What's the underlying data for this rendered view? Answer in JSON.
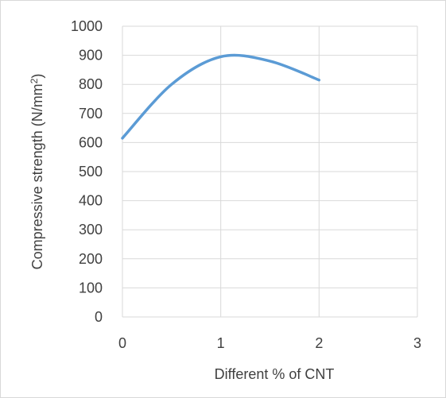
{
  "chart_data": {
    "type": "line",
    "smooth": true,
    "xlabel": "Different % of CNT",
    "ylabel": "Compressive strength (N/mm²)",
    "ylabel_base": "Compressive strength (N/mm",
    "ylabel_sup": "2",
    "ylabel_end": ")",
    "xlim": [
      0,
      3
    ],
    "ylim": [
      0,
      1000
    ],
    "xticks": [
      "0",
      "1",
      "2",
      "3"
    ],
    "yticks": [
      "0",
      "100",
      "200",
      "300",
      "400",
      "500",
      "600",
      "700",
      "800",
      "900",
      "1000"
    ],
    "grid": true,
    "legend": "none",
    "series": [
      {
        "color": "#5b9bd5",
        "points": [
          {
            "x": 0,
            "y": 615
          },
          {
            "x": 0.5,
            "y": 800
          },
          {
            "x": 1,
            "y": 895
          },
          {
            "x": 1.5,
            "y": 880
          },
          {
            "x": 2,
            "y": 815
          }
        ]
      }
    ],
    "colors": {
      "grid": "#d9d9d9",
      "text": "#404040",
      "line": "#5b9bd5"
    }
  }
}
